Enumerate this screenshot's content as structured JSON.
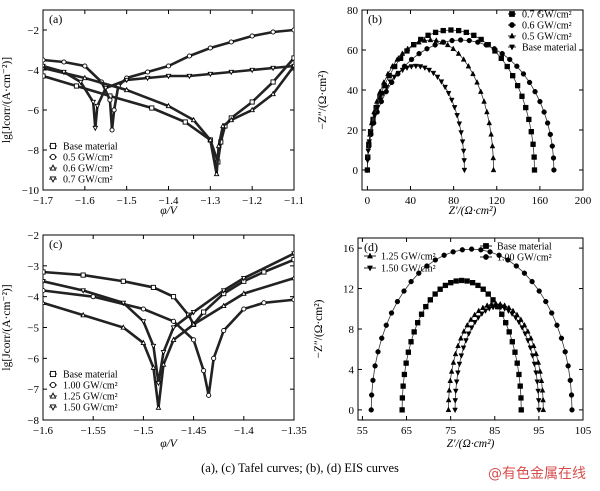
{
  "caption": "(a), (c) Tafel curves; (b), (d)   EIS curves",
  "watermark": "@有色金属在线",
  "chart_data": [
    {
      "panel": "(a)",
      "type": "line",
      "xlabel": "φ/V",
      "ylabel": "lg[Jcorr/(A·cm⁻²)]",
      "xlim": [
        -1.7,
        -1.1
      ],
      "ylim": [
        -10,
        -1
      ],
      "xticks": [
        -1.7,
        -1.6,
        -1.5,
        -1.4,
        -1.3,
        -1.2,
        -1.1
      ],
      "yticks": [
        -10,
        -8,
        -6,
        -4,
        -2
      ],
      "legend_position": "lower-left",
      "series": [
        {
          "name": "Base material",
          "marker": "square",
          "x": [
            -1.7,
            -1.62,
            -1.54,
            -1.44,
            -1.36,
            -1.3,
            -1.282,
            -1.275,
            -1.265,
            -1.25,
            -1.2,
            -1.15,
            -1.1
          ],
          "y": [
            -4.3,
            -4.8,
            -5.3,
            -5.9,
            -6.6,
            -7.5,
            -8.6,
            -7.6,
            -6.8,
            -6.4,
            -5.6,
            -4.6,
            -3.4
          ]
        },
        {
          "name": "0.5 GW/cm²",
          "marker": "circle",
          "x": [
            -1.7,
            -1.65,
            -1.6,
            -1.56,
            -1.54,
            -1.535,
            -1.53,
            -1.52,
            -1.5,
            -1.45,
            -1.4,
            -1.35,
            -1.3,
            -1.25,
            -1.2,
            -1.15,
            -1.1
          ],
          "y": [
            -3.5,
            -3.6,
            -3.8,
            -4.6,
            -5.5,
            -7.0,
            -6.0,
            -4.8,
            -4.4,
            -4.1,
            -3.8,
            -3.3,
            -2.9,
            -2.6,
            -2.3,
            -2.1,
            -2.0
          ]
        },
        {
          "name": "0.6 GW/cm²",
          "marker": "triangle-up",
          "x": [
            -1.7,
            -1.6,
            -1.5,
            -1.4,
            -1.34,
            -1.3,
            -1.285,
            -1.28,
            -1.27,
            -1.25,
            -1.2,
            -1.15,
            -1.1
          ],
          "y": [
            -3.9,
            -4.4,
            -5.0,
            -5.8,
            -6.5,
            -7.5,
            -9.2,
            -7.8,
            -6.8,
            -6.5,
            -6.0,
            -5.2,
            -3.8
          ]
        },
        {
          "name": "0.7 GW/cm²",
          "marker": "triangle-down",
          "x": [
            -1.7,
            -1.65,
            -1.61,
            -1.58,
            -1.575,
            -1.57,
            -1.55,
            -1.5,
            -1.45,
            -1.4,
            -1.35,
            -1.3,
            -1.25,
            -1.2,
            -1.15,
            -1.1
          ],
          "y": [
            -3.8,
            -4.1,
            -4.6,
            -5.6,
            -6.9,
            -5.8,
            -4.9,
            -4.5,
            -4.4,
            -4.3,
            -4.3,
            -4.2,
            -4.1,
            -4.0,
            -3.9,
            -3.8
          ]
        }
      ]
    },
    {
      "panel": "(b)",
      "type": "scatter",
      "xlabel": "Z′/(Ω·cm²)",
      "ylabel": "−Z″/(Ω·cm²)",
      "xlim": [
        -5,
        200
      ],
      "ylim": [
        -10,
        80
      ],
      "xticks": [
        0,
        40,
        80,
        120,
        160,
        200
      ],
      "yticks": [
        0,
        20,
        40,
        60,
        80
      ],
      "legend_position": "top-right",
      "series": [
        {
          "name": "0.7 GW/cm²",
          "marker": "square",
          "arc_start": 0,
          "arc_end": 155,
          "peak": 70
        },
        {
          "name": "0.6 GW/cm²",
          "marker": "circle",
          "arc_start": 0,
          "arc_end": 173,
          "peak": 65
        },
        {
          "name": "0.5 GW/cm²",
          "marker": "triangle-up",
          "arc_start": 0,
          "arc_end": 117,
          "peak": 65
        },
        {
          "name": "Base material",
          "marker": "triangle-down",
          "arc_start": 0,
          "arc_end": 90,
          "peak": 52
        }
      ]
    },
    {
      "panel": "(c)",
      "type": "line",
      "xlabel": "φ/V",
      "ylabel": "lg[Jcorr/(A·cm⁻²)]",
      "xlim": [
        -1.6,
        -1.35
      ],
      "ylim": [
        -8,
        -2
      ],
      "xticks": [
        -1.6,
        -1.55,
        -1.5,
        -1.45,
        -1.4,
        -1.35
      ],
      "yticks": [
        -8,
        -7,
        -6,
        -5,
        -4,
        -3,
        -2
      ],
      "legend_position": "lower-left",
      "series": [
        {
          "name": "Base material",
          "marker": "square",
          "x": [
            -1.6,
            -1.56,
            -1.52,
            -1.49,
            -1.47,
            -1.455,
            -1.45,
            -1.44,
            -1.42,
            -1.4,
            -1.38,
            -1.35
          ],
          "y": [
            -3.2,
            -3.3,
            -3.5,
            -3.7,
            -4.0,
            -4.6,
            -4.9,
            -4.5,
            -3.9,
            -3.5,
            -3.2,
            -2.8
          ]
        },
        {
          "name": "1.00 GW/cm²",
          "marker": "circle",
          "x": [
            -1.6,
            -1.55,
            -1.5,
            -1.47,
            -1.45,
            -1.44,
            -1.435,
            -1.43,
            -1.42,
            -1.4,
            -1.38,
            -1.35
          ],
          "y": [
            -3.8,
            -4.0,
            -4.4,
            -4.8,
            -5.4,
            -6.4,
            -7.2,
            -6.0,
            -5.1,
            -4.4,
            -4.2,
            -4.1
          ]
        },
        {
          "name": "1.25 GW/cm²",
          "marker": "triangle-up",
          "x": [
            -1.6,
            -1.56,
            -1.52,
            -1.5,
            -1.49,
            -1.485,
            -1.48,
            -1.47,
            -1.45,
            -1.42,
            -1.4,
            -1.35
          ],
          "y": [
            -4.2,
            -4.6,
            -5.0,
            -5.5,
            -6.3,
            -7.6,
            -6.2,
            -5.4,
            -4.9,
            -4.3,
            -3.9,
            -3.4
          ]
        },
        {
          "name": "1.50 GW/cm²",
          "marker": "triangle-down",
          "x": [
            -1.6,
            -1.56,
            -1.52,
            -1.5,
            -1.49,
            -1.485,
            -1.48,
            -1.47,
            -1.45,
            -1.42,
            -1.4,
            -1.35
          ],
          "y": [
            -3.5,
            -3.8,
            -4.2,
            -4.8,
            -5.6,
            -6.8,
            -5.8,
            -5.0,
            -4.5,
            -3.8,
            -3.4,
            -2.6
          ]
        }
      ]
    },
    {
      "panel": "(d)",
      "type": "scatter",
      "xlabel": "Z′/(Ω·cm²)",
      "ylabel": "−Z″/(Ω·cm²)",
      "xlim": [
        54,
        105
      ],
      "ylim": [
        -1,
        17
      ],
      "xticks": [
        55,
        65,
        75,
        85,
        95,
        105
      ],
      "yticks": [
        0,
        4,
        8,
        12,
        16
      ],
      "legend_position": "top",
      "series": [
        {
          "name": "Base material",
          "marker": "square",
          "arc_start": 64.0,
          "arc_end": 91.0,
          "peak": 12.8
        },
        {
          "name": "1.00 GW/cm²",
          "marker": "circle",
          "arc_start": 57.0,
          "arc_end": 102.5,
          "peak": 15.9
        },
        {
          "name": "1.25 GW/cm²",
          "marker": "triangle-up",
          "arc_start": 74.5,
          "arc_end": 96.0,
          "peak": 10.5
        },
        {
          "name": "1.50 GW/cm²",
          "marker": "triangle-down",
          "arc_start": 76.0,
          "arc_end": 95.0,
          "peak": 10.2
        }
      ]
    }
  ]
}
